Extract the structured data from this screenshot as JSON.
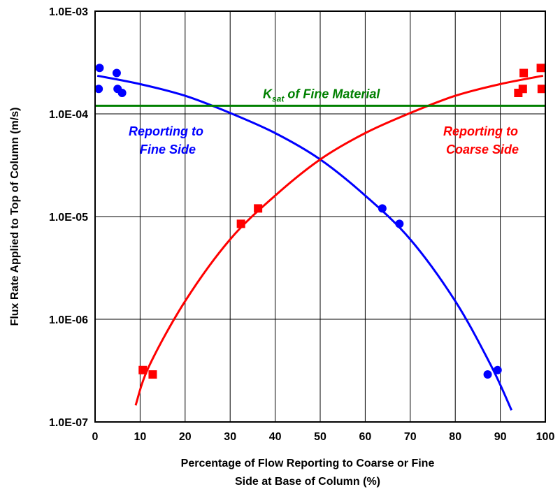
{
  "chart_data": {
    "type": "scatter",
    "title": "",
    "xlabel_lines": [
      "Percentage of Flow Reporting  to Coarse or Fine",
      "Side at Base of Column (%)"
    ],
    "ylabel": "Flux Rate Applied to Top of Column (m/s)",
    "xlim": [
      0,
      100
    ],
    "ylim": [
      1e-07,
      0.001
    ],
    "yscale": "log",
    "grid": true,
    "x_ticks": [
      0,
      10,
      20,
      30,
      40,
      50,
      60,
      70,
      80,
      90,
      100
    ],
    "y_ticks": [
      1e-07,
      1e-06,
      1e-05,
      0.0001,
      0.001
    ],
    "y_tick_labels": [
      "1.0E-07",
      "1.0E-06",
      "1.0E-05",
      "1.0E-04",
      "1.0E-03"
    ],
    "series": [
      {
        "name": "Reporting to Fine Side",
        "color": "#0000ff",
        "marker": "circle",
        "points": [
          {
            "x": 1.0,
            "y": 0.00028
          },
          {
            "x": 0.8,
            "y": 0.000175
          },
          {
            "x": 4.8,
            "y": 0.00025
          },
          {
            "x": 5.0,
            "y": 0.000175
          },
          {
            "x": 6.0,
            "y": 0.00016
          },
          {
            "x": 63.8,
            "y": 1.2e-05
          },
          {
            "x": 67.6,
            "y": 8.5e-06
          },
          {
            "x": 87.2,
            "y": 2.9e-07
          },
          {
            "x": 89.4,
            "y": 3.2e-07
          }
        ],
        "fit": [
          {
            "x": 0.5,
            "y": 0.000235
          },
          {
            "x": 10,
            "y": 0.000195
          },
          {
            "x": 20,
            "y": 0.00015
          },
          {
            "x": 30,
            "y": 0.000102
          },
          {
            "x": 40,
            "y": 6.5e-05
          },
          {
            "x": 50,
            "y": 3.6e-05
          },
          {
            "x": 60,
            "y": 1.6e-05
          },
          {
            "x": 70,
            "y": 6e-06
          },
          {
            "x": 80,
            "y": 1.5e-06
          },
          {
            "x": 88,
            "y": 3.5e-07
          },
          {
            "x": 92.5,
            "y": 1.3e-07
          }
        ]
      },
      {
        "name": "Reporting to Coarse Side",
        "color": "#ff0000",
        "marker": "square",
        "points": [
          {
            "x": 10.6,
            "y": 3.2e-07
          },
          {
            "x": 12.8,
            "y": 2.9e-07
          },
          {
            "x": 32.4,
            "y": 8.5e-06
          },
          {
            "x": 36.2,
            "y": 1.2e-05
          },
          {
            "x": 94.0,
            "y": 0.00016
          },
          {
            "x": 95.0,
            "y": 0.000175
          },
          {
            "x": 95.2,
            "y": 0.00025
          },
          {
            "x": 99.0,
            "y": 0.00028
          },
          {
            "x": 99.2,
            "y": 0.000175
          }
        ],
        "fit": [
          {
            "x": 9.0,
            "y": 1.45e-07
          },
          {
            "x": 12,
            "y": 3.5e-07
          },
          {
            "x": 20,
            "y": 1.5e-06
          },
          {
            "x": 30,
            "y": 6e-06
          },
          {
            "x": 40,
            "y": 1.6e-05
          },
          {
            "x": 50,
            "y": 3.6e-05
          },
          {
            "x": 60,
            "y": 6.5e-05
          },
          {
            "x": 70,
            "y": 0.000102
          },
          {
            "x": 80,
            "y": 0.00015
          },
          {
            "x": 90,
            "y": 0.000195
          },
          {
            "x": 99.5,
            "y": 0.000235
          }
        ]
      }
    ],
    "reference_line": {
      "y": 0.00012,
      "color": "#008000",
      "label_main": "K",
      "label_sub": "sat",
      "label_rest": " of Fine Material"
    },
    "annotations": [
      {
        "lines": [
          "Reporting to",
          "Fine Side"
        ],
        "color": "#0000ff"
      },
      {
        "lines": [
          "Reporting to",
          "Coarse Side"
        ],
        "color": "#ff0000"
      }
    ]
  }
}
